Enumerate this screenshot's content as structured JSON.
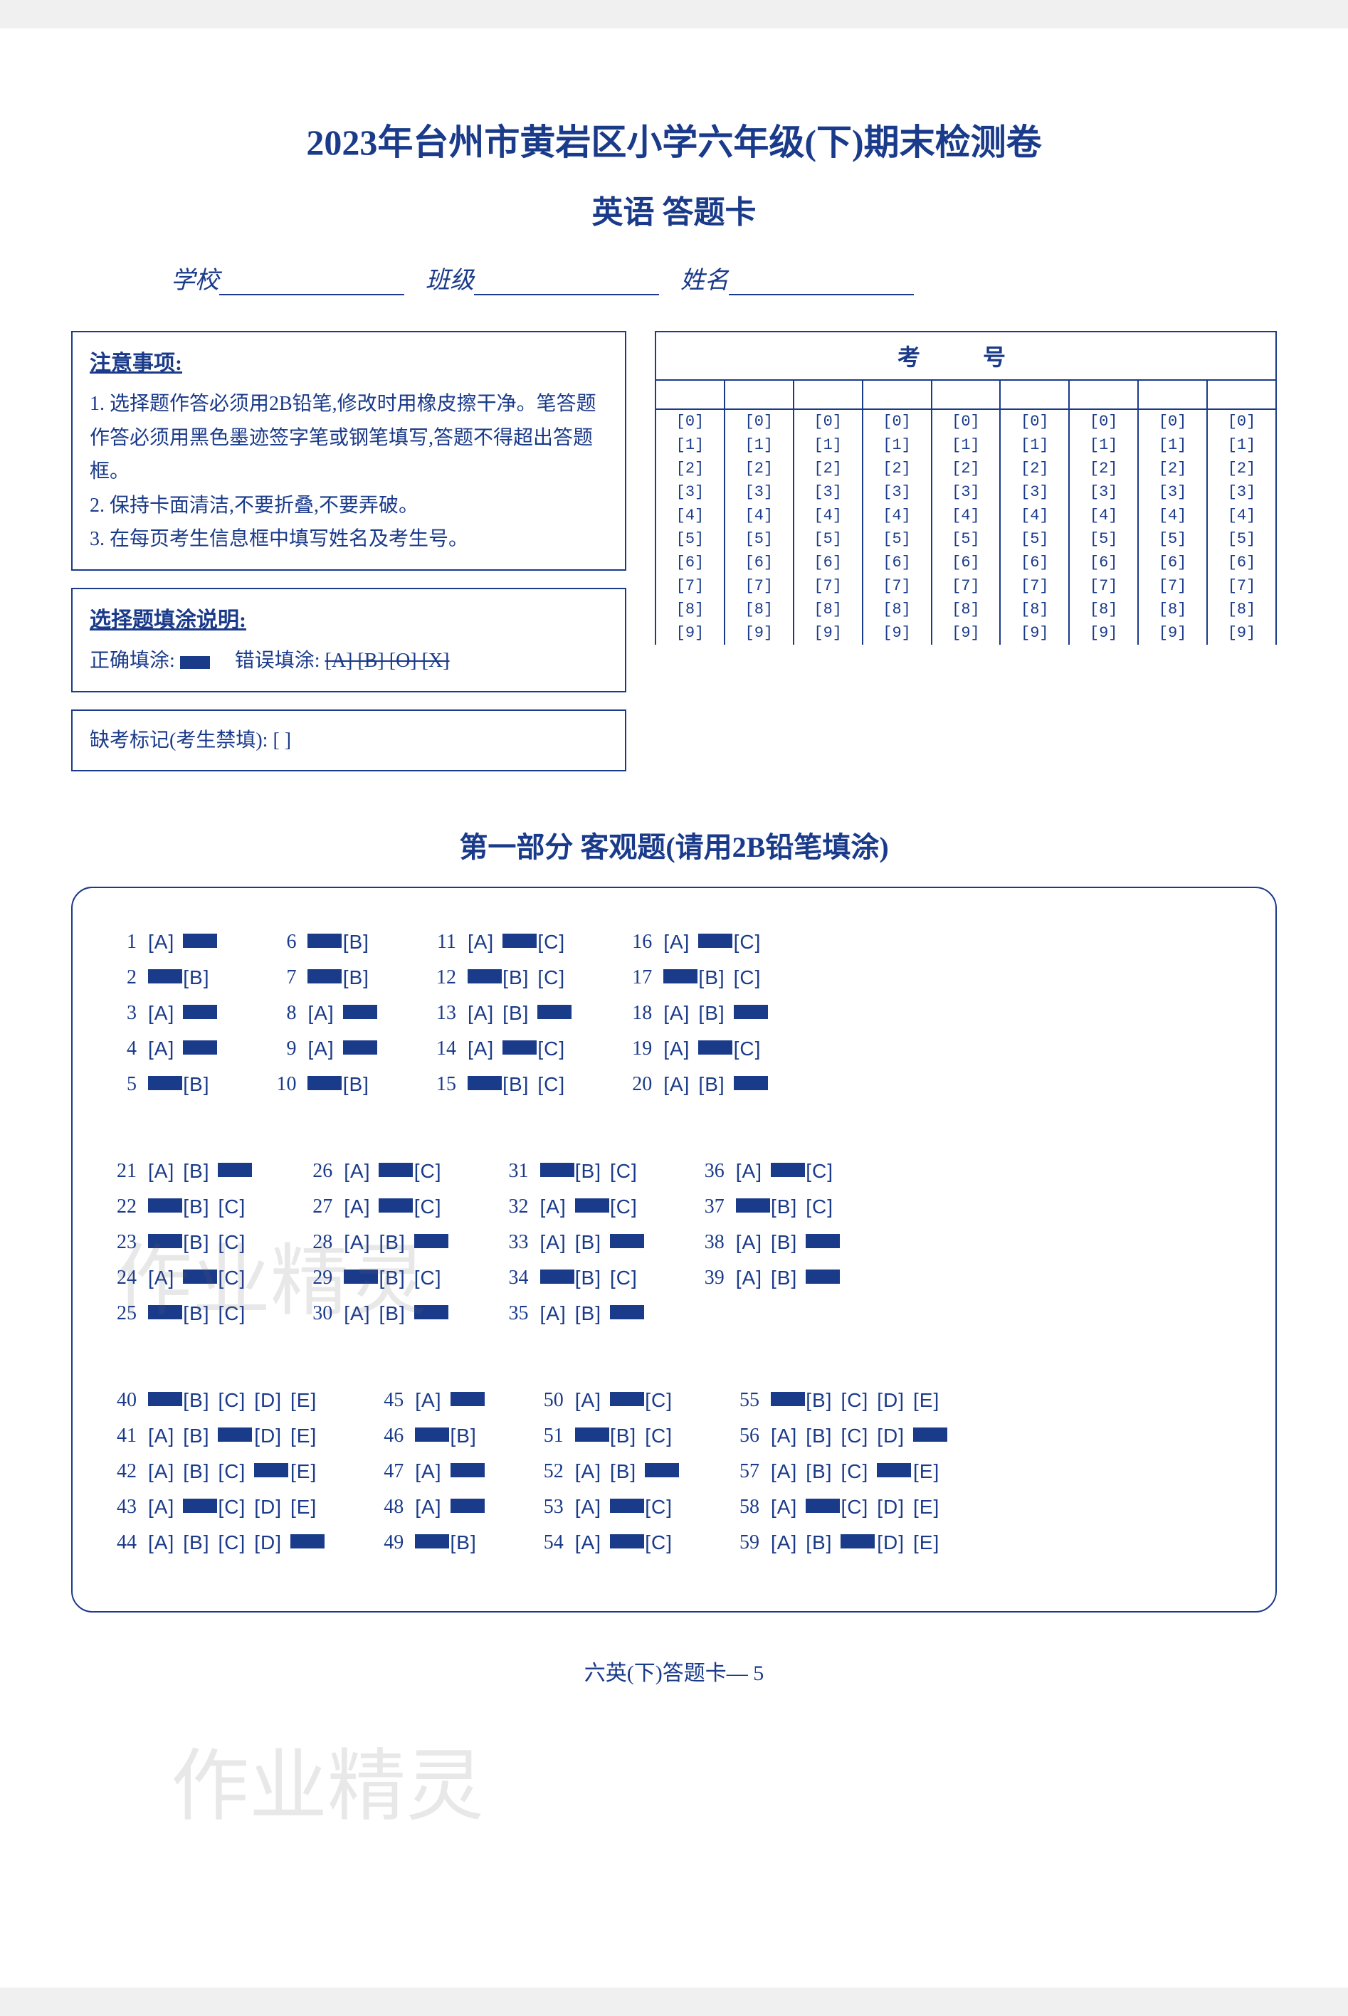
{
  "title": "2023年台州市黄岩区小学六年级(下)期末检测卷",
  "subtitle": "英语   答题卡",
  "info": {
    "school": "学校",
    "class": "班级",
    "name": "姓名"
  },
  "notice": {
    "title": "注意事项:",
    "items": [
      "1. 选择题作答必须用2B铅笔,修改时用橡皮擦干净。笔答题作答必须用黑色墨迹签字笔或钢笔填写,答题不得超出答题框。",
      "2. 保持卡面清洁,不要折叠,不要弄破。",
      "3. 在每页考生信息框中填写姓名及考生号。"
    ]
  },
  "fill_rule": {
    "title": "选择题填涂说明:",
    "correct_label": "正确填涂:",
    "wrong_label": "错误填涂:",
    "wrong_examples": "[A] [B] [O] [X]"
  },
  "absent": {
    "label": "缺考标记(考生禁填):",
    "bracket": "[   ]"
  },
  "exam_no": {
    "header": "考   号",
    "digits": [
      "[0]",
      "[1]",
      "[2]",
      "[3]",
      "[4]",
      "[5]",
      "[6]",
      "[7]",
      "[8]",
      "[9]"
    ],
    "cols": 9
  },
  "section1_title": "第一部分  客观题(请用2B铅笔填涂)",
  "groups": [
    {
      "cols": [
        [
          {
            "n": 1,
            "opts": [
              "A",
              "B"
            ],
            "ans": "B"
          },
          {
            "n": 2,
            "opts": [
              "A",
              "B"
            ],
            "ans": "A"
          },
          {
            "n": 3,
            "opts": [
              "A",
              "B"
            ],
            "ans": "B"
          },
          {
            "n": 4,
            "opts": [
              "A",
              "B"
            ],
            "ans": "B"
          },
          {
            "n": 5,
            "opts": [
              "A",
              "B"
            ],
            "ans": "A"
          }
        ],
        [
          {
            "n": 6,
            "opts": [
              "A",
              "B"
            ],
            "ans": "A"
          },
          {
            "n": 7,
            "opts": [
              "A",
              "B"
            ],
            "ans": "A"
          },
          {
            "n": 8,
            "opts": [
              "A",
              "B"
            ],
            "ans": "B"
          },
          {
            "n": 9,
            "opts": [
              "A",
              "B"
            ],
            "ans": "B"
          },
          {
            "n": 10,
            "opts": [
              "A",
              "B"
            ],
            "ans": "A"
          }
        ],
        [
          {
            "n": 11,
            "opts": [
              "A",
              "B",
              "C"
            ],
            "ans": "B"
          },
          {
            "n": 12,
            "opts": [
              "A",
              "B",
              "C"
            ],
            "ans": "A"
          },
          {
            "n": 13,
            "opts": [
              "A",
              "B",
              "C"
            ],
            "ans": "C"
          },
          {
            "n": 14,
            "opts": [
              "A",
              "B",
              "C"
            ],
            "ans": "B"
          },
          {
            "n": 15,
            "opts": [
              "A",
              "B",
              "C"
            ],
            "ans": "A"
          }
        ],
        [
          {
            "n": 16,
            "opts": [
              "A",
              "B",
              "C"
            ],
            "ans": "B"
          },
          {
            "n": 17,
            "opts": [
              "A",
              "B",
              "C"
            ],
            "ans": "A"
          },
          {
            "n": 18,
            "opts": [
              "A",
              "B",
              "C"
            ],
            "ans": "C"
          },
          {
            "n": 19,
            "opts": [
              "A",
              "B",
              "C"
            ],
            "ans": "B"
          },
          {
            "n": 20,
            "opts": [
              "A",
              "B",
              "C"
            ],
            "ans": "C"
          }
        ]
      ]
    },
    {
      "cols": [
        [
          {
            "n": 21,
            "opts": [
              "A",
              "B",
              "C"
            ],
            "ans": "C"
          },
          {
            "n": 22,
            "opts": [
              "A",
              "B",
              "C"
            ],
            "ans": "A"
          },
          {
            "n": 23,
            "opts": [
              "A",
              "B",
              "C"
            ],
            "ans": "A"
          },
          {
            "n": 24,
            "opts": [
              "A",
              "B",
              "C"
            ],
            "ans": "B"
          },
          {
            "n": 25,
            "opts": [
              "A",
              "B",
              "C"
            ],
            "ans": "A"
          }
        ],
        [
          {
            "n": 26,
            "opts": [
              "A",
              "B",
              "C"
            ],
            "ans": "B"
          },
          {
            "n": 27,
            "opts": [
              "A",
              "B",
              "C"
            ],
            "ans": "B"
          },
          {
            "n": 28,
            "opts": [
              "A",
              "B",
              "C"
            ],
            "ans": "C"
          },
          {
            "n": 29,
            "opts": [
              "A",
              "B",
              "C"
            ],
            "ans": "A"
          },
          {
            "n": 30,
            "opts": [
              "A",
              "B",
              "C"
            ],
            "ans": "C"
          }
        ],
        [
          {
            "n": 31,
            "opts": [
              "A",
              "B",
              "C"
            ],
            "ans": "A"
          },
          {
            "n": 32,
            "opts": [
              "A",
              "B",
              "C"
            ],
            "ans": "B"
          },
          {
            "n": 33,
            "opts": [
              "A",
              "B",
              "C"
            ],
            "ans": "C"
          },
          {
            "n": 34,
            "opts": [
              "A",
              "B",
              "C"
            ],
            "ans": "A"
          },
          {
            "n": 35,
            "opts": [
              "A",
              "B",
              "C"
            ],
            "ans": "C"
          }
        ],
        [
          {
            "n": 36,
            "opts": [
              "A",
              "B",
              "C"
            ],
            "ans": "B"
          },
          {
            "n": 37,
            "opts": [
              "A",
              "B",
              "C"
            ],
            "ans": "A"
          },
          {
            "n": 38,
            "opts": [
              "A",
              "B",
              "C"
            ],
            "ans": "C"
          },
          {
            "n": 39,
            "opts": [
              "A",
              "B",
              "C"
            ],
            "ans": "C"
          }
        ]
      ]
    },
    {
      "cols": [
        [
          {
            "n": 40,
            "opts": [
              "A",
              "B",
              "C",
              "D",
              "E"
            ],
            "ans": "A"
          },
          {
            "n": 41,
            "opts": [
              "A",
              "B",
              "C",
              "D",
              "E"
            ],
            "ans": "C"
          },
          {
            "n": 42,
            "opts": [
              "A",
              "B",
              "C",
              "D",
              "E"
            ],
            "ans": "D"
          },
          {
            "n": 43,
            "opts": [
              "A",
              "B",
              "C",
              "D",
              "E"
            ],
            "ans": "B"
          },
          {
            "n": 44,
            "opts": [
              "A",
              "B",
              "C",
              "D",
              "E"
            ],
            "ans": "E"
          }
        ],
        [
          {
            "n": 45,
            "opts": [
              "A",
              "B"
            ],
            "ans": "B"
          },
          {
            "n": 46,
            "opts": [
              "A",
              "B"
            ],
            "ans": "A"
          },
          {
            "n": 47,
            "opts": [
              "A",
              "B"
            ],
            "ans": "B"
          },
          {
            "n": 48,
            "opts": [
              "A",
              "B"
            ],
            "ans": "B"
          },
          {
            "n": 49,
            "opts": [
              "A",
              "B"
            ],
            "ans": "A"
          }
        ],
        [
          {
            "n": 50,
            "opts": [
              "A",
              "B",
              "C"
            ],
            "ans": "B"
          },
          {
            "n": 51,
            "opts": [
              "A",
              "B",
              "C"
            ],
            "ans": "A"
          },
          {
            "n": 52,
            "opts": [
              "A",
              "B",
              "C"
            ],
            "ans": "C"
          },
          {
            "n": 53,
            "opts": [
              "A",
              "B",
              "C"
            ],
            "ans": "B"
          },
          {
            "n": 54,
            "opts": [
              "A",
              "B",
              "C"
            ],
            "ans": "B"
          }
        ],
        [
          {
            "n": 55,
            "opts": [
              "A",
              "B",
              "C",
              "D",
              "E"
            ],
            "ans": "A"
          },
          {
            "n": 56,
            "opts": [
              "A",
              "B",
              "C",
              "D",
              "E"
            ],
            "ans": "E"
          },
          {
            "n": 57,
            "opts": [
              "A",
              "B",
              "C",
              "D",
              "E"
            ],
            "ans": "D"
          },
          {
            "n": 58,
            "opts": [
              "A",
              "B",
              "C",
              "D",
              "E"
            ],
            "ans": "B"
          },
          {
            "n": 59,
            "opts": [
              "A",
              "B",
              "C",
              "D",
              "E"
            ],
            "ans": "C"
          }
        ]
      ]
    }
  ],
  "footer": "六英(下)答题卡— 5",
  "watermarks": [
    "作业精灵",
    "作业精灵"
  ],
  "colors": {
    "primary": "#1a3a8a",
    "background": "#ffffff",
    "watermark": "rgba(100,100,100,0.15)"
  }
}
